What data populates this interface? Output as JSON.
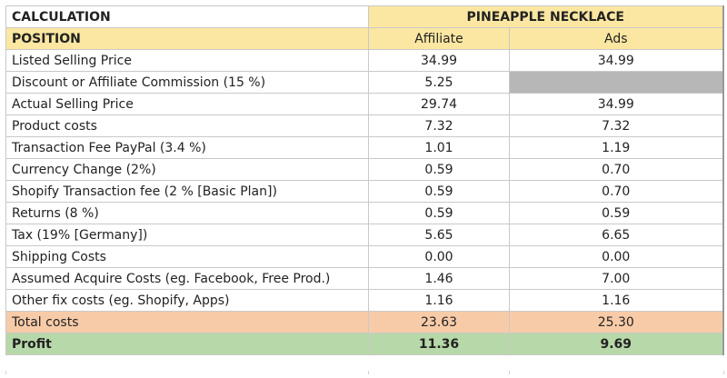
{
  "header": {
    "calculation_label": "CALCULATION",
    "product_title": "PINEAPPLE NECKLACE",
    "position_label": "POSITION",
    "col_affiliate": "Affiliate",
    "col_ads": "Ads"
  },
  "rows": [
    {
      "label": "Listed Selling Price",
      "affiliate": "34.99",
      "ads": "34.99"
    },
    {
      "label": "Discount or Affiliate Commission (15 %)",
      "affiliate": "5.25",
      "ads": ""
    },
    {
      "label": "Actual Selling Price",
      "affiliate": "29.74",
      "ads": "34.99"
    },
    {
      "label": "Product costs",
      "affiliate": "7.32",
      "ads": "7.32"
    },
    {
      "label": "Transaction Fee PayPal (3.4 %)",
      "affiliate": "1.01",
      "ads": "1.19"
    },
    {
      "label": "Currency Change (2%)",
      "affiliate": "0.59",
      "ads": "0.70"
    },
    {
      "label": "Shopify Transaction fee (2 % [Basic Plan])",
      "affiliate": "0.59",
      "ads": "0.70"
    },
    {
      "label": "Returns (8 %)",
      "affiliate": "0.59",
      "ads": "0.59"
    },
    {
      "label": "Tax (19% [Germany])",
      "affiliate": "5.65",
      "ads": "6.65"
    },
    {
      "label": "Shipping Costs",
      "affiliate": "0.00",
      "ads": "0.00"
    },
    {
      "label": "Assumed Acquire Costs (eg. Facebook, Free Prod.)",
      "affiliate": "1.46",
      "ads": "7.00"
    },
    {
      "label": "Other fix costs (eg. Shopify, Apps)",
      "affiliate": "1.16",
      "ads": "1.16"
    }
  ],
  "totals": {
    "label": "Total costs",
    "affiliate": "23.63",
    "ads": "25.30"
  },
  "profit": {
    "label": "Profit",
    "affiliate": "11.36",
    "ads": "9.69"
  },
  "colors": {
    "header_yellow": "#fbe7a1",
    "total_orange": "#f8cba8",
    "profit_green": "#b7d8a8",
    "blank_grey": "#b7b7b7"
  }
}
